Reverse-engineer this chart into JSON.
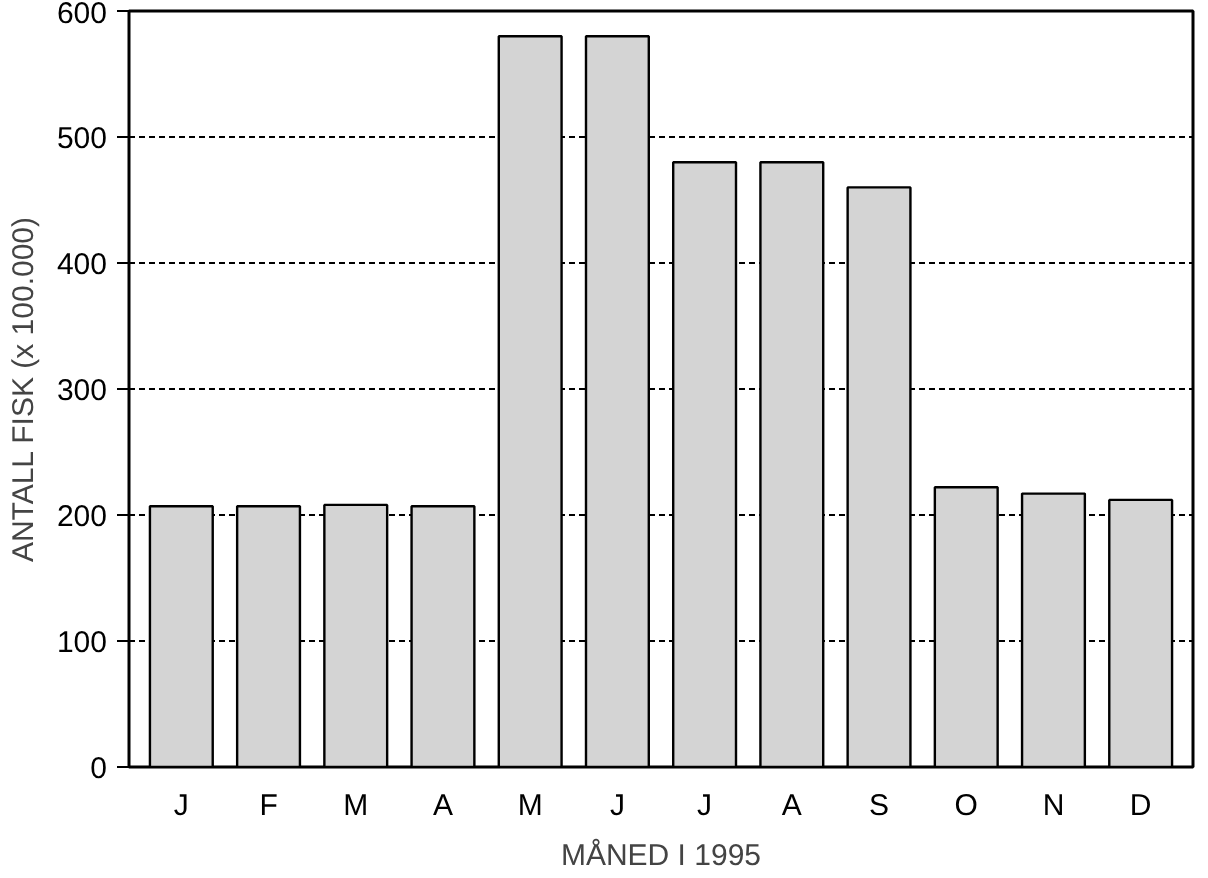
{
  "chart_data": {
    "type": "bar",
    "xlabel": "MÅNED I 1995",
    "ylabel": "ANTALL FISK (x 100.000)",
    "categories": [
      "J",
      "F",
      "M",
      "A",
      "M",
      "J",
      "J",
      "A",
      "S",
      "O",
      "N",
      "D"
    ],
    "values": [
      207,
      207,
      208,
      207,
      580,
      580,
      480,
      480,
      460,
      222,
      217,
      212
    ],
    "color": "#d4d4d4",
    "ylim": [
      0,
      600
    ],
    "yticks": [
      0,
      100,
      200,
      300,
      400,
      500,
      600
    ],
    "grid": "y"
  }
}
